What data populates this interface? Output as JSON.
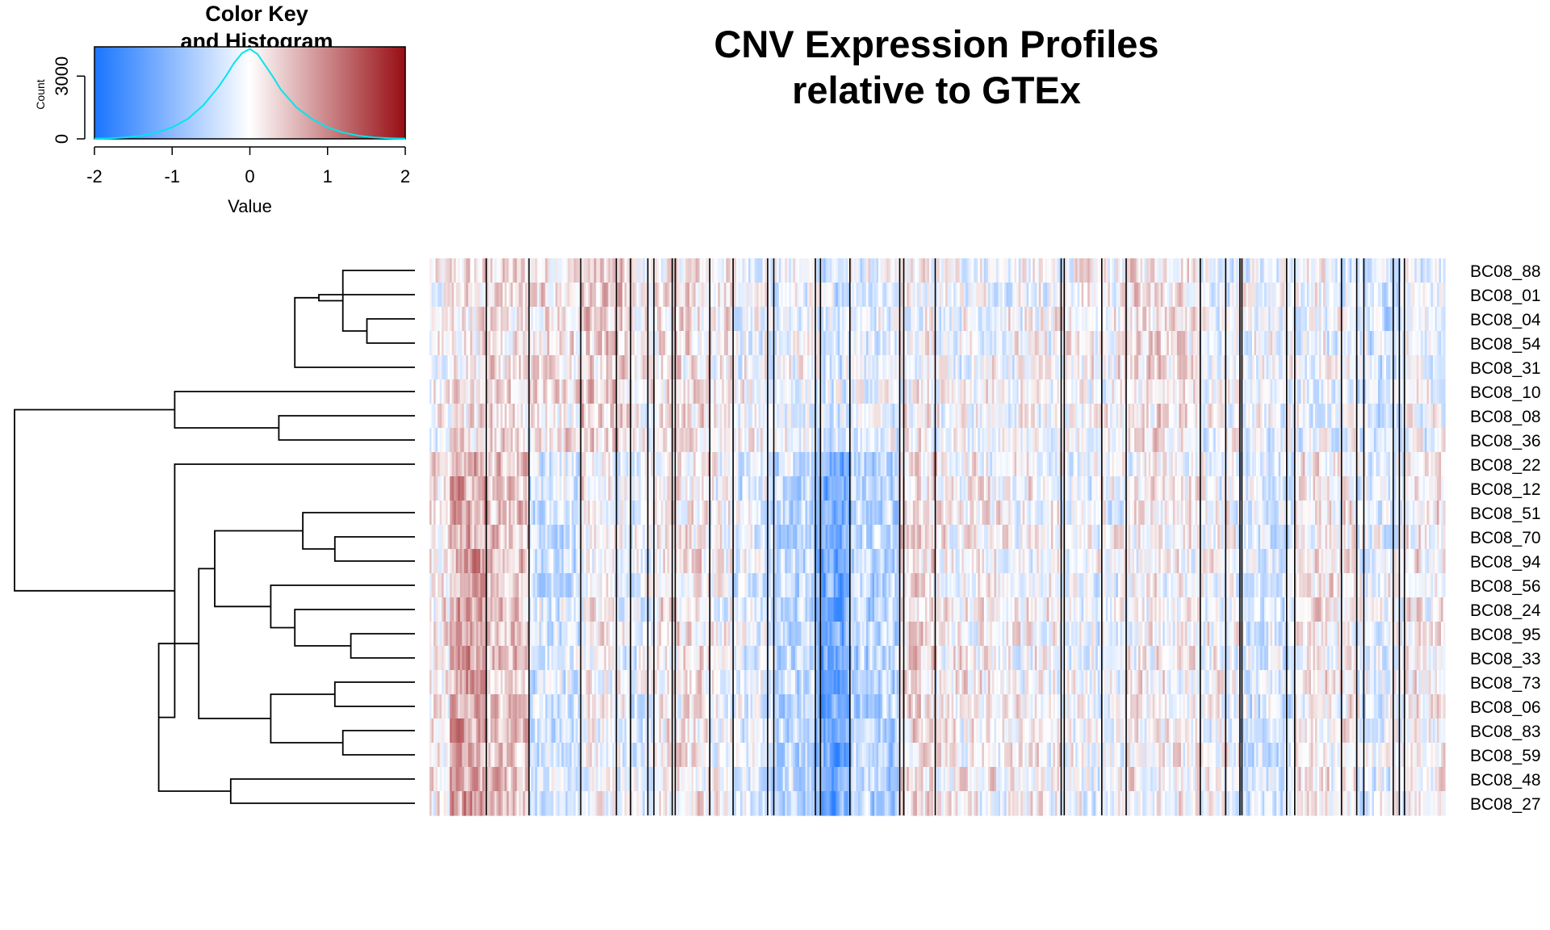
{
  "chart_data": {
    "type": "heatmap",
    "title": "CNV Expression Profiles\nrelative to GTEx",
    "color_key": {
      "title": "Color Key\nand Histogram",
      "xlabel": "Value",
      "ylabel": "Count",
      "x_ticks": [
        "-2",
        "-1",
        "0",
        "1",
        "2"
      ],
      "y_ticks": [
        "0",
        "3000"
      ],
      "x_range": [
        -2,
        2
      ],
      "y_range": [
        0,
        4400
      ],
      "colors": {
        "low": "#1a75ff",
        "mid": "#ffffff",
        "high": "#970d13",
        "histogram": "#00e5ee"
      },
      "histogram": [
        {
          "x": -2.0,
          "count": 10
        },
        {
          "x": -1.8,
          "count": 25
        },
        {
          "x": -1.6,
          "count": 70
        },
        {
          "x": -1.4,
          "count": 150
        },
        {
          "x": -1.2,
          "count": 300
        },
        {
          "x": -1.0,
          "count": 550
        },
        {
          "x": -0.8,
          "count": 950
        },
        {
          "x": -0.6,
          "count": 1600
        },
        {
          "x": -0.4,
          "count": 2500
        },
        {
          "x": -0.3,
          "count": 3050
        },
        {
          "x": -0.2,
          "count": 3650
        },
        {
          "x": -0.1,
          "count": 4100
        },
        {
          "x": 0.0,
          "count": 4300
        },
        {
          "x": 0.1,
          "count": 4050
        },
        {
          "x": 0.2,
          "count": 3500
        },
        {
          "x": 0.3,
          "count": 2950
        },
        {
          "x": 0.4,
          "count": 2350
        },
        {
          "x": 0.6,
          "count": 1500
        },
        {
          "x": 0.8,
          "count": 950
        },
        {
          "x": 1.0,
          "count": 550
        },
        {
          "x": 1.2,
          "count": 300
        },
        {
          "x": 1.4,
          "count": 150
        },
        {
          "x": 1.6,
          "count": 70
        },
        {
          "x": 1.8,
          "count": 30
        },
        {
          "x": 2.0,
          "count": 10
        }
      ]
    },
    "rows": [
      "BC08_88",
      "BC08_01",
      "BC08_04",
      "BC08_54",
      "BC08_31",
      "BC08_10",
      "BC08_08",
      "BC08_36",
      "BC08_22",
      "BC08_12",
      "BC08_51",
      "BC08_70",
      "BC08_94",
      "BC08_56",
      "BC08_24",
      "BC08_95",
      "BC08_33",
      "BC08_73",
      "BC08_06",
      "BC08_83",
      "BC08_59",
      "BC08_48",
      "BC08_27"
    ],
    "value_range": [
      -2,
      2
    ],
    "n_columns": 500,
    "column_separators": [
      56,
      98,
      149,
      184,
      198,
      215,
      221,
      239,
      242,
      276,
      299,
      333,
      339,
      380,
      385,
      414,
      463,
      467,
      498,
      622,
      625,
      662,
      686,
      759,
      784,
      798,
      800,
      844,
      852,
      898,
      913,
      920,
      949,
      955,
      960
    ],
    "column_blocks": [
      {
        "from": 0,
        "to": 21,
        "rows_0_7": 0.0,
        "rows_8_22": 0.15
      },
      {
        "from": 21,
        "to": 56,
        "rows_0_7": 0.2,
        "rows_8_22": 0.75
      },
      {
        "from": 56,
        "to": 98,
        "rows_0_7": 0.25,
        "rows_8_22": 0.45
      },
      {
        "from": 98,
        "to": 149,
        "rows_0_7": 0.2,
        "rows_8_22": -0.35
      },
      {
        "from": 149,
        "to": 184,
        "rows_0_7": 0.35,
        "rows_8_22": 0.05
      },
      {
        "from": 184,
        "to": 198,
        "rows_0_7": 0.3,
        "rows_8_22": -0.15
      },
      {
        "from": 198,
        "to": 221,
        "rows_0_7": 0.0,
        "rows_8_22": -0.2
      },
      {
        "from": 221,
        "to": 242,
        "rows_0_7": 0.1,
        "rows_8_22": 0.15
      },
      {
        "from": 242,
        "to": 276,
        "rows_0_7": 0.2,
        "rows_8_22": 0.2
      },
      {
        "from": 276,
        "to": 299,
        "rows_0_7": 0.1,
        "rows_8_22": 0.0
      },
      {
        "from": 299,
        "to": 333,
        "rows_0_7": -0.05,
        "rows_8_22": -0.25
      },
      {
        "from": 333,
        "to": 339,
        "rows_0_7": -0.2,
        "rows_8_22": -0.45
      },
      {
        "from": 339,
        "to": 380,
        "rows_0_7": -0.1,
        "rows_8_22": -0.5
      },
      {
        "from": 380,
        "to": 385,
        "rows_0_7": -0.2,
        "rows_8_22": -0.9
      },
      {
        "from": 385,
        "to": 414,
        "rows_0_7": -0.3,
        "rows_8_22": -1.2
      },
      {
        "from": 414,
        "to": 463,
        "rows_0_7": -0.2,
        "rows_8_22": -0.6
      },
      {
        "from": 463,
        "to": 498,
        "rows_0_7": 0.05,
        "rows_8_22": 0.25
      },
      {
        "from": 498,
        "to": 622,
        "rows_0_7": -0.05,
        "rows_8_22": 0.05
      },
      {
        "from": 622,
        "to": 686,
        "rows_0_7": 0.05,
        "rows_8_22": -0.1
      },
      {
        "from": 686,
        "to": 759,
        "rows_0_7": 0.25,
        "rows_8_22": 0.05
      },
      {
        "from": 759,
        "to": 798,
        "rows_0_7": -0.1,
        "rows_8_22": -0.05
      },
      {
        "from": 798,
        "to": 852,
        "rows_0_7": -0.15,
        "rows_8_22": -0.3
      },
      {
        "from": 852,
        "to": 913,
        "rows_0_7": -0.15,
        "rows_8_22": 0.1
      },
      {
        "from": 913,
        "to": 960,
        "rows_0_7": -0.35,
        "rows_8_22": -0.15
      },
      {
        "from": 960,
        "to": 1000,
        "rows_0_7": -0.1,
        "rows_8_22": 0.1
      }
    ],
    "dendrogram": {
      "merges": [
        {
          "a": 2,
          "b": 3,
          "height": 0.93
        },
        {
          "a": 0,
          "b": "m0",
          "height": 0.97
        },
        {
          "a": "m1",
          "b": 1,
          "height": 0.99
        },
        {
          "a": 6,
          "b": 7,
          "height": 1.01
        },
        {
          "a": 15,
          "b": 16,
          "height": 1.02
        },
        {
          "a": 11,
          "b": 12,
          "height": 1.08
        },
        {
          "a": 19,
          "b": 20,
          "height": 1.09
        },
        {
          "a": 21,
          "b": 22,
          "height": 1.11
        },
        {
          "a": 17,
          "b": 18,
          "height": 1.13
        },
        {
          "a": 14,
          "b": "m4",
          "height": 1.15
        },
        {
          "a": 10,
          "b": "m5",
          "height": 1.16
        },
        {
          "a": "m2",
          "b": 4,
          "height": 1.18
        },
        {
          "a": 13,
          "b": "m9",
          "height": 1.19
        },
        {
          "a": "m8",
          "b": "m6",
          "height": 1.2
        },
        {
          "a": "m10",
          "b": "m12",
          "height": 1.24
        },
        {
          "a": "m3",
          "b": 5,
          "height": 1.25
        },
        {
          "a": "m14",
          "b": "m13",
          "height": 1.26
        },
        {
          "a": "m7",
          "b": "m16",
          "height": 1.29
        },
        {
          "a": 8,
          "b": "m17",
          "height": 1.3
        },
        {
          "a": 9,
          "b": "m18",
          "height": 1.35
        },
        {
          "a": "m11",
          "b": 5,
          "height": 1.0
        }
      ]
    }
  }
}
